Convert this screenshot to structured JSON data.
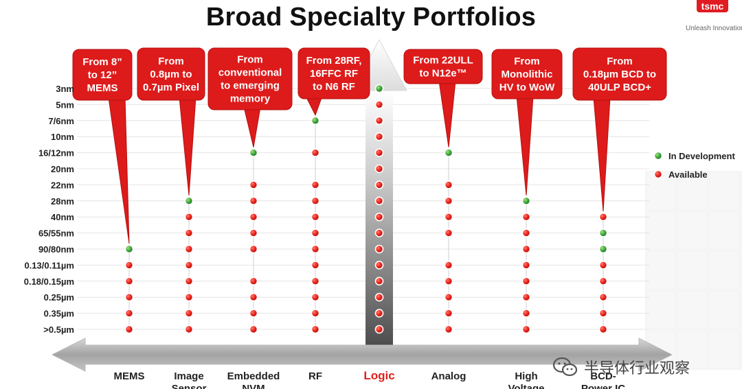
{
  "title": "Broad Specialty Portfolios",
  "brand": {
    "logo_text": "tsmc",
    "tagline": "Unleash Innovation"
  },
  "colors": {
    "available": "#e8221b",
    "in_development": "#3aa63a",
    "callout": "#dd1b1b",
    "logic_accent": "#e0201a"
  },
  "diagram": {
    "nodes": [
      "3nm",
      "5nm",
      "7/6nm",
      "10nm",
      "16/12nm",
      "20nm",
      "22nm",
      "28nm",
      "40nm",
      "65/55nm",
      "90/80nm",
      "0.13/0.11µm",
      "0.18/0.15µm",
      "0.25µm",
      "0.35µm",
      ">0.5µm"
    ],
    "categories": [
      {
        "name": "MEMS",
        "callout": [
          "From 8”",
          "to 12”",
          "MEMS"
        ],
        "dots": [
          [
            10,
            "dev"
          ],
          [
            11,
            "avail"
          ],
          [
            12,
            "avail"
          ],
          [
            13,
            "avail"
          ],
          [
            14,
            "avail"
          ],
          [
            15,
            "avail"
          ]
        ]
      },
      {
        "name": "Image\nSensor",
        "callout": [
          "From",
          "0.8µm to",
          "0.7µm Pixel"
        ],
        "dots": [
          [
            7,
            "dev"
          ],
          [
            8,
            "avail"
          ],
          [
            9,
            "avail"
          ],
          [
            10,
            "avail"
          ],
          [
            11,
            "avail"
          ],
          [
            12,
            "avail"
          ],
          [
            13,
            "avail"
          ],
          [
            14,
            "avail"
          ],
          [
            15,
            "avail"
          ]
        ]
      },
      {
        "name": "Embedded\nNVM",
        "callout": [
          "From",
          "conventional",
          "to emerging",
          "memory"
        ],
        "dots": [
          [
            4,
            "dev"
          ],
          [
            6,
            "avail"
          ],
          [
            7,
            "avail"
          ],
          [
            8,
            "avail"
          ],
          [
            9,
            "avail"
          ],
          [
            10,
            "avail"
          ],
          [
            12,
            "avail"
          ],
          [
            13,
            "avail"
          ],
          [
            14,
            "avail"
          ],
          [
            15,
            "avail"
          ]
        ]
      },
      {
        "name": "RF",
        "callout": [
          "From 28RF,",
          "16FFC RF",
          "to N6 RF"
        ],
        "dots": [
          [
            2,
            "dev"
          ],
          [
            4,
            "avail"
          ],
          [
            6,
            "avail"
          ],
          [
            7,
            "avail"
          ],
          [
            8,
            "avail"
          ],
          [
            9,
            "avail"
          ],
          [
            10,
            "avail"
          ],
          [
            11,
            "avail"
          ],
          [
            12,
            "avail"
          ],
          [
            13,
            "avail"
          ],
          [
            14,
            "avail"
          ],
          [
            15,
            "avail"
          ]
        ]
      },
      {
        "name": "Logic",
        "logic": true,
        "callout": [],
        "dots": [
          [
            0,
            "dev"
          ],
          [
            1,
            "avail"
          ],
          [
            2,
            "avail"
          ],
          [
            3,
            "avail"
          ],
          [
            4,
            "avail"
          ],
          [
            5,
            "avail"
          ],
          [
            6,
            "avail"
          ],
          [
            7,
            "avail"
          ],
          [
            8,
            "avail"
          ],
          [
            9,
            "avail"
          ],
          [
            10,
            "avail"
          ],
          [
            11,
            "avail"
          ],
          [
            12,
            "avail"
          ],
          [
            13,
            "avail"
          ],
          [
            14,
            "avail"
          ],
          [
            15,
            "avail"
          ]
        ]
      },
      {
        "name": "Analog",
        "callout": [
          "From 22ULL",
          "to N12e™"
        ],
        "dots": [
          [
            4,
            "dev"
          ],
          [
            6,
            "avail"
          ],
          [
            7,
            "avail"
          ],
          [
            8,
            "avail"
          ],
          [
            9,
            "avail"
          ],
          [
            11,
            "avail"
          ],
          [
            12,
            "avail"
          ],
          [
            13,
            "avail"
          ],
          [
            14,
            "avail"
          ],
          [
            15,
            "avail"
          ]
        ]
      },
      {
        "name": "High\nVoltage",
        "callout": [
          "From",
          "Monolithic",
          "HV to WoW"
        ],
        "dots": [
          [
            7,
            "dev"
          ],
          [
            8,
            "avail"
          ],
          [
            9,
            "avail"
          ],
          [
            10,
            "avail"
          ],
          [
            11,
            "avail"
          ],
          [
            12,
            "avail"
          ],
          [
            13,
            "avail"
          ],
          [
            14,
            "avail"
          ],
          [
            15,
            "avail"
          ]
        ]
      },
      {
        "name": "BCD-\nPower IC",
        "callout": [
          "From",
          "0.18µm BCD to",
          "40ULP BCD+"
        ],
        "dots": [
          [
            8,
            "avail"
          ],
          [
            9,
            "dev"
          ],
          [
            10,
            "dev"
          ],
          [
            11,
            "avail"
          ],
          [
            12,
            "avail"
          ],
          [
            13,
            "avail"
          ],
          [
            14,
            "avail"
          ],
          [
            15,
            "avail"
          ]
        ]
      }
    ]
  },
  "legend": {
    "in_development": "In Development",
    "available": "Available"
  },
  "watermark": {
    "text": "半导体行业观察",
    "icon": "wechat-icon"
  }
}
